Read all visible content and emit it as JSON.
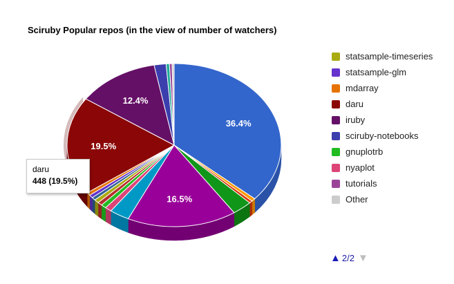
{
  "chart_data": {
    "type": "pie",
    "title": "Sciruby Popular repos (in the view of number of watchers)",
    "slices": [
      {
        "label": "",
        "percent": 36.4,
        "color": "#3366cc",
        "side": "#2a53a8",
        "show_label": true
      },
      {
        "label": "",
        "percent": 0.6,
        "color": "#ff9900",
        "side": "#cc7a00",
        "show_label": false
      },
      {
        "label": "",
        "percent": 0.5,
        "color": "#dc3912",
        "side": "#b02d0e",
        "show_label": false
      },
      {
        "label": "",
        "percent": 3.0,
        "color": "#109618",
        "side": "#0c7512",
        "show_label": false
      },
      {
        "label": "",
        "percent": 16.5,
        "color": "#990099",
        "side": "#730073",
        "show_label": true
      },
      {
        "label": "",
        "percent": 3.0,
        "color": "#0099c6",
        "side": "#0077a0",
        "show_label": false
      },
      {
        "label": "nyaplot",
        "percent": 1.0,
        "color": "#dd4477",
        "side": "#b03760",
        "show_label": false
      },
      {
        "label": "gnuplotrb",
        "percent": 0.8,
        "color": "#22bb22",
        "side": "#1a9a1a",
        "show_label": false
      },
      {
        "label": "",
        "percent": 0.7,
        "color": "#b82e2e",
        "side": "#922424",
        "show_label": false
      },
      {
        "label": "statsample-timeseries",
        "percent": 0.7,
        "color": "#aaaa11",
        "side": "#88880d",
        "show_label": false
      },
      {
        "label": "",
        "percent": 0.6,
        "color": "#316395",
        "side": "#254a70",
        "show_label": false
      },
      {
        "label": "statsample-glm",
        "percent": 0.6,
        "color": "#6633cc",
        "side": "#4d2699",
        "show_label": false
      },
      {
        "label": "mdarray",
        "percent": 0.6,
        "color": "#e67300",
        "side": "#b35900",
        "show_label": false
      },
      {
        "label": "daru",
        "percent": 19.5,
        "color": "#8b0707",
        "side": "#650505",
        "show_label": true,
        "highlighted": true
      },
      {
        "label": "iruby",
        "percent": 12.4,
        "color": "#651067",
        "side": "#4b0c4d",
        "show_label": true
      },
      {
        "label": "sciruby-notebooks",
        "percent": 1.8,
        "color": "#3b3eac",
        "side": "#2c2e80",
        "show_label": false
      },
      {
        "label": "gnuplotrb",
        "percent": 0.5,
        "color": "#22aa99",
        "side": "#198073",
        "show_label": false
      },
      {
        "label": "tutorials",
        "percent": 0.4,
        "color": "#994499",
        "side": "#733373",
        "show_label": false
      },
      {
        "label": "Other",
        "percent": 0.3,
        "color": "#cccccc",
        "side": "#a3a3a3",
        "show_label": false
      }
    ],
    "legend": {
      "position": "right",
      "items": [
        {
          "label": "statsample-timeseries",
          "color": "#aaaa11"
        },
        {
          "label": "statsample-glm",
          "color": "#6633cc"
        },
        {
          "label": "mdarray",
          "color": "#e67300"
        },
        {
          "label": "daru",
          "color": "#8b0707"
        },
        {
          "label": "iruby",
          "color": "#651067"
        },
        {
          "label": "sciruby-notebooks",
          "color": "#3b3eac"
        },
        {
          "label": "gnuplotrb",
          "color": "#22bb22"
        },
        {
          "label": "nyaplot",
          "color": "#dd4477"
        },
        {
          "label": "tutorials",
          "color": "#994499"
        },
        {
          "label": "Other",
          "color": "#cccccc"
        }
      ]
    },
    "tooltip": {
      "name": "daru",
      "value": "448 (19.5%)"
    }
  },
  "pager": {
    "text": "2/2",
    "prev_icon": "triangle-up-icon",
    "next_icon": "triangle-down-icon"
  }
}
